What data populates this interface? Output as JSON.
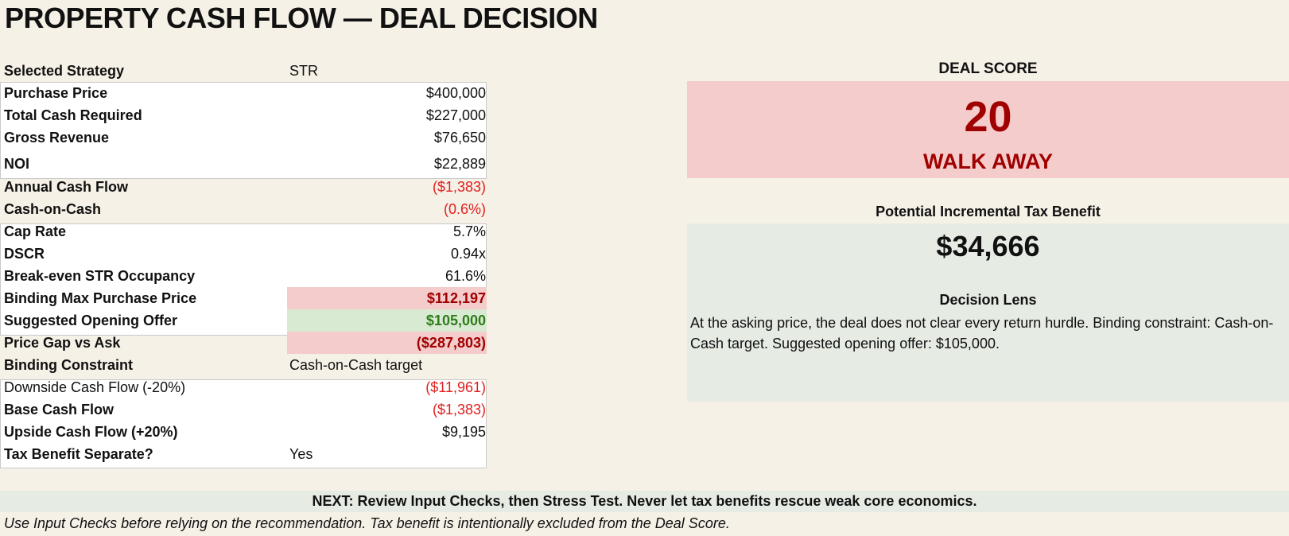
{
  "title": "PROPERTY CASH FLOW — DEAL DECISION",
  "rows": [
    {
      "label": "Selected Strategy",
      "value": "STR"
    },
    {
      "label": "Purchase Price",
      "value": "$400,000"
    },
    {
      "label": "Total Cash Required",
      "value": "$227,000"
    },
    {
      "label": "Gross Revenue",
      "value": "$76,650"
    },
    {
      "label": "NOI",
      "value": "$22,889"
    },
    {
      "label": "Annual Cash Flow",
      "value": "($1,383)"
    },
    {
      "label": "Cash-on-Cash",
      "value": "(0.6%)"
    },
    {
      "label": "Cap Rate",
      "value": "5.7%"
    },
    {
      "label": "DSCR",
      "value": "0.94x"
    },
    {
      "label": "Break-even STR Occupancy",
      "value": "61.6%"
    },
    {
      "label": "Binding Max Purchase Price",
      "value": "$112,197"
    },
    {
      "label": "Suggested Opening Offer",
      "value": "$105,000"
    },
    {
      "label": "Price Gap vs Ask",
      "value": "($287,803)"
    },
    {
      "label": "Binding Constraint",
      "value": "Cash-on-Cash target"
    },
    {
      "label": "Downside Cash Flow (-20%)",
      "value": "($11,961)"
    },
    {
      "label": "Base Cash Flow",
      "value": "($1,383)"
    },
    {
      "label": "Upside Cash Flow (+20%)",
      "value": "$9,195"
    },
    {
      "label": "Tax Benefit Separate?",
      "value": "Yes"
    }
  ],
  "score": {
    "label": "DEAL SCORE",
    "value": "20",
    "verdict": "WALK AWAY"
  },
  "tax": {
    "label": "Potential Incremental Tax Benefit",
    "value": "$34,666"
  },
  "lens": {
    "title": "Decision Lens",
    "text": "At the asking price, the deal does not clear every return hurdle. Binding constraint: Cash-on-Cash target. Suggested opening offer: $105,000."
  },
  "next": "NEXT: Review Input Checks, then Stress Test. Never let tax benefits rescue weak core economics.",
  "footnote": "Use Input Checks before relying on the recommendation. Tax benefit is intentionally excluded from the Deal Score.",
  "colors": {
    "background": "#f6f1e7",
    "negative": "#e02020",
    "walk_away": "#a00000",
    "highlight_red": "#f4cccc",
    "highlight_green": "#d9ead3",
    "panel_green": "#e6ebe4"
  }
}
